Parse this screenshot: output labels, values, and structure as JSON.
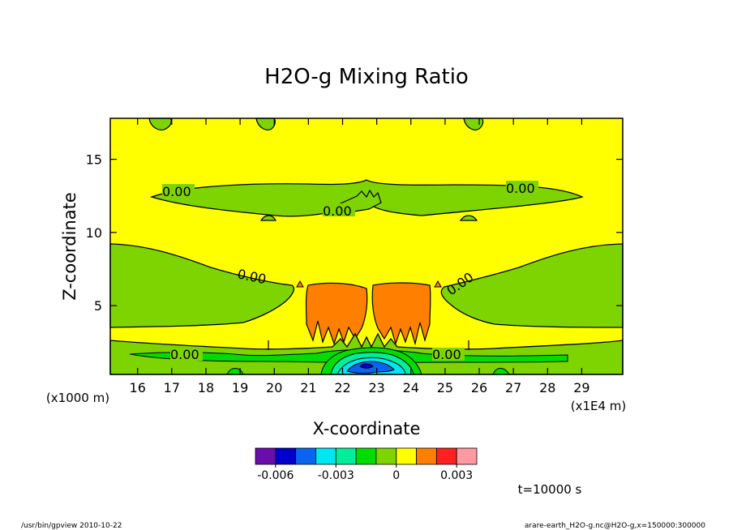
{
  "chart_data": {
    "type": "heatmap",
    "title": "H2O-g Mixing Ratio",
    "xlabel": "X-coordinate",
    "ylabel": "Z-coordinate",
    "x_scale_note": "(x1E4 m)",
    "y_scale_note": "(x1000 m)",
    "xlim": [
      15.2,
      30.2
    ],
    "ylim": [
      0.3,
      17.8
    ],
    "x_ticks": [
      16,
      17,
      18,
      19,
      20,
      21,
      22,
      23,
      24,
      25,
      26,
      27,
      28,
      29
    ],
    "y_ticks": [
      5,
      10,
      15
    ],
    "colorbar": {
      "colors": [
        "#6a0dad",
        "#0000cc",
        "#0a64f0",
        "#00e6f0",
        "#00ee9a",
        "#00dc00",
        "#7ed400",
        "#ffff00",
        "#ff8000",
        "#ff2020",
        "#ff9aa0"
      ],
      "tick_labels": [
        "-0.006",
        "-0.003",
        "0",
        "0.003"
      ],
      "tick_values": [
        -0.006,
        -0.003,
        0,
        0.003
      ]
    },
    "contour_labels": [
      "0.00",
      "0.00",
      "0.00",
      "0.00",
      "0.00",
      "0.00",
      "0.00"
    ],
    "time_label": "t=10000 s"
  },
  "footer": {
    "left": "/usr/bin/gpview   2010-10-22",
    "right": "arare-earth_H2O-g.nc@H2O-g,x=150000:300000"
  }
}
